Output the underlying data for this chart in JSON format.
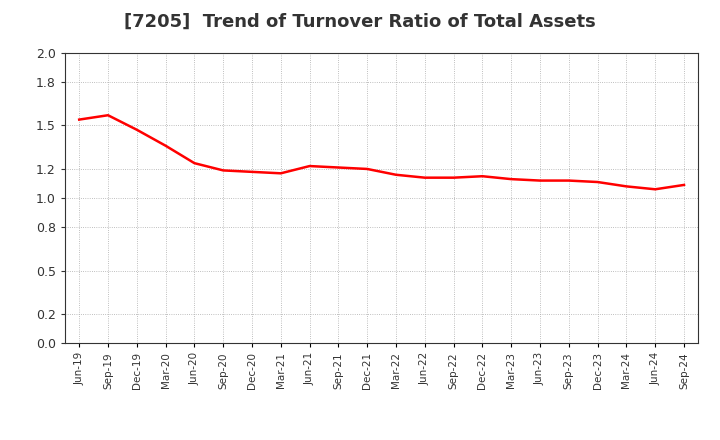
{
  "title": "[7205]  Trend of Turnover Ratio of Total Assets",
  "title_fontsize": 13,
  "line_color": "#FF0000",
  "line_width": 1.8,
  "background_color": "#FFFFFF",
  "plot_bg_color": "#FFFFFF",
  "grid_color": "#AAAAAA",
  "ylim": [
    0.0,
    2.0
  ],
  "ytick_values": [
    0.0,
    0.2,
    0.5,
    0.8,
    1.0,
    1.2,
    1.5,
    1.8,
    2.0
  ],
  "x_labels": [
    "Jun-19",
    "Sep-19",
    "Dec-19",
    "Mar-20",
    "Jun-20",
    "Sep-20",
    "Dec-20",
    "Mar-21",
    "Jun-21",
    "Sep-21",
    "Dec-21",
    "Mar-22",
    "Jun-22",
    "Sep-22",
    "Dec-22",
    "Mar-23",
    "Jun-23",
    "Sep-23",
    "Dec-23",
    "Mar-24",
    "Jun-24",
    "Sep-24"
  ],
  "values": [
    1.54,
    1.57,
    1.47,
    1.36,
    1.24,
    1.19,
    1.18,
    1.17,
    1.22,
    1.21,
    1.2,
    1.16,
    1.14,
    1.14,
    1.15,
    1.13,
    1.12,
    1.12,
    1.11,
    1.08,
    1.06,
    1.09
  ]
}
